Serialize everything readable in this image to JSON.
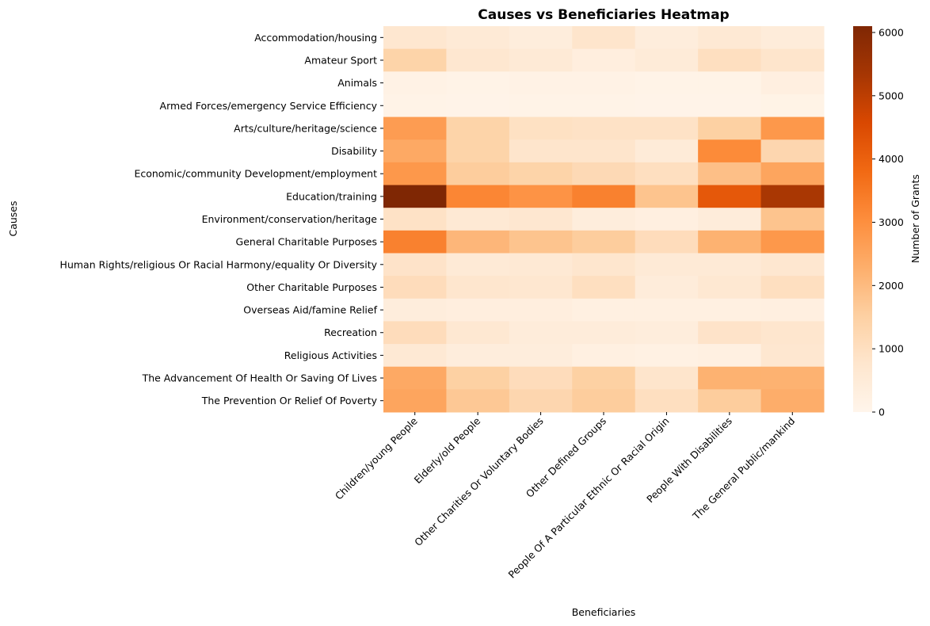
{
  "chart_data": {
    "type": "heatmap",
    "title": "Causes vs Beneficiaries Heatmap",
    "xlabel": "Beneficiaries",
    "ylabel": "Causes",
    "x_categories": [
      "Children/young People",
      "Elderly/old People",
      "Other Charities Or Voluntary Bodies",
      "Other Defined Groups",
      "People Of A Particular Ethnic Or Racial Origin",
      "People With Disabilities",
      "The General Public/mankind"
    ],
    "y_categories": [
      "Accommodation/housing",
      "Amateur Sport",
      "Animals",
      "Armed Forces/emergency Service Efficiency",
      "Arts/culture/heritage/science",
      "Disability",
      "Economic/community Development/employment",
      "Education/training",
      "Environment/conservation/heritage",
      "General Charitable Purposes",
      "Human Rights/religious Or Racial Harmony/equality Or Diversity",
      "Other Charitable Purposes",
      "Overseas Aid/famine Relief",
      "Recreation",
      "Religious Activities",
      "The Advancement Of Health Or Saving Of Lives",
      "The Prevention Or Relief Of Poverty"
    ],
    "values": [
      [
        700,
        550,
        400,
        800,
        400,
        600,
        450
      ],
      [
        1400,
        700,
        550,
        350,
        500,
        1000,
        800
      ],
      [
        150,
        100,
        150,
        150,
        100,
        100,
        300
      ],
      [
        100,
        80,
        100,
        100,
        80,
        80,
        120
      ],
      [
        2700,
        1400,
        950,
        900,
        900,
        1500,
        2800
      ],
      [
        2400,
        1400,
        800,
        800,
        500,
        3100,
        1300
      ],
      [
        2800,
        1600,
        1400,
        1200,
        1000,
        1900,
        2500
      ],
      [
        6100,
        3200,
        2900,
        3300,
        1800,
        4200,
        5300
      ],
      [
        900,
        600,
        700,
        400,
        300,
        450,
        1800
      ],
      [
        3300,
        2100,
        1800,
        1600,
        1100,
        2200,
        2800
      ],
      [
        850,
        550,
        600,
        750,
        550,
        550,
        700
      ],
      [
        1100,
        750,
        700,
        1000,
        450,
        650,
        1000
      ],
      [
        400,
        350,
        350,
        250,
        250,
        250,
        300
      ],
      [
        1100,
        650,
        450,
        450,
        400,
        850,
        750
      ],
      [
        600,
        400,
        400,
        250,
        200,
        250,
        700
      ],
      [
        2400,
        1500,
        1100,
        1500,
        800,
        2200,
        2200
      ],
      [
        2500,
        1700,
        1300,
        1600,
        1000,
        1600,
        2300
      ]
    ],
    "colormap": "Oranges",
    "colorbar": {
      "label": "Number of Grants",
      "range": [
        0,
        6100
      ],
      "ticks": [
        0,
        1000,
        2000,
        3000,
        4000,
        5000,
        6000
      ],
      "tick_labels": [
        "0",
        "1000",
        "2000",
        "3000",
        "4000",
        "5000",
        "6000"
      ]
    },
    "grid": false,
    "legend": "right"
  }
}
